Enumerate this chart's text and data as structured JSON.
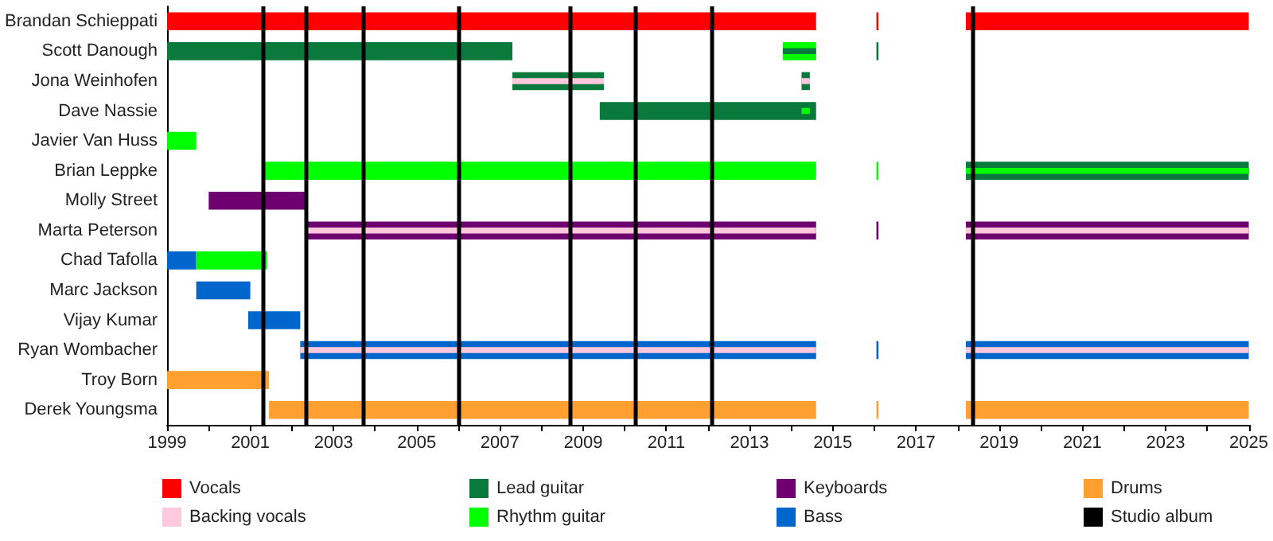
{
  "chart_data": {
    "type": "bar",
    "orientation": "horizontal",
    "categories": [
      "Brandan Schieppati",
      "Scott Danough",
      "Jona Weinhofen",
      "Dave Nassie",
      "Javier Van Huss",
      "Brian Leppke",
      "Molly Street",
      "Marta Peterson",
      "Chad Tafolla",
      "Marc Jackson",
      "Vijay Kumar",
      "Ryan Wombacher",
      "Troy Born",
      "Derek Youngsma"
    ],
    "xlim": [
      1999,
      2025
    ],
    "xticks": [
      1999,
      {
        "value": 2000,
        "label": null
      },
      2001,
      {
        "value": 2002,
        "label": null
      },
      2003,
      {
        "value": 2004,
        "label": null
      },
      2005,
      {
        "value": 2006,
        "label": null
      },
      2007,
      {
        "value": 2008,
        "label": null
      },
      2009,
      {
        "value": 2010,
        "label": null
      },
      2011,
      {
        "value": 2012,
        "label": null
      },
      2013,
      {
        "value": 2014,
        "label": null
      },
      2015,
      {
        "value": 2016,
        "label": null
      },
      2017,
      {
        "value": 2018,
        "label": null
      },
      2019,
      {
        "value": 2020,
        "label": null
      },
      2021,
      {
        "value": 2022,
        "label": null
      },
      2023,
      {
        "value": 2024,
        "label": null
      },
      2025
    ],
    "legend": "bottom",
    "series": [
      {
        "name": "Vocals",
        "color": "#ff0000",
        "base": [
          1999,
          null,
          null,
          null,
          null,
          null,
          null,
          null,
          null,
          null,
          null,
          null,
          null,
          null
        ],
        "values": [
          15.6,
          null,
          null,
          null,
          null,
          null,
          null,
          null,
          null,
          null,
          null,
          null,
          null,
          null
        ]
      },
      {
        "color": "#ff0000",
        "base": [
          2016.05,
          null,
          null,
          null,
          null,
          null,
          null,
          null,
          null,
          null,
          null,
          null,
          null,
          null
        ],
        "values": [
          0.05,
          null,
          null,
          null,
          null,
          null,
          null,
          null,
          null,
          null,
          null,
          null,
          null,
          null
        ]
      },
      {
        "color": "#ff0000",
        "base": [
          2018.2,
          null,
          null,
          null,
          null,
          null,
          null,
          null,
          null,
          null,
          null,
          null,
          null,
          null
        ],
        "values": [
          6.8,
          null,
          null,
          null,
          null,
          null,
          null,
          null,
          null,
          null,
          null,
          null,
          null,
          null
        ]
      },
      {
        "color": "#0a7a3c",
        "base": [
          null,
          1999,
          2007.3,
          2009.4,
          null,
          2018.2,
          null,
          null,
          null,
          null,
          null,
          null,
          null,
          null
        ],
        "values": [
          null,
          8.3,
          2.2,
          5.2,
          null,
          6.8,
          null,
          null,
          null,
          null,
          null,
          null,
          null,
          null
        ]
      },
      {
        "color": "#0a7a3c",
        "base": [
          null,
          null,
          2014.25,
          null,
          null,
          null,
          null,
          null,
          null,
          null,
          null,
          null,
          null,
          null
        ],
        "values": [
          null,
          null,
          0.2,
          null,
          null,
          null,
          null,
          null,
          null,
          null,
          null,
          null,
          null,
          null
        ]
      },
      {
        "color": "#6e0070",
        "base": [
          null,
          null,
          null,
          null,
          null,
          null,
          2000,
          2002.35,
          null,
          null,
          null,
          null,
          null,
          null
        ],
        "values": [
          null,
          null,
          null,
          null,
          null,
          null,
          2.35,
          12.25,
          null,
          null,
          null,
          null,
          null,
          null
        ]
      },
      {
        "color": "#6e0070",
        "base": [
          null,
          null,
          null,
          null,
          null,
          null,
          null,
          2018.2,
          null,
          null,
          null,
          null,
          null,
          null
        ],
        "values": [
          null,
          null,
          null,
          null,
          null,
          null,
          null,
          6.8,
          null,
          null,
          null,
          null,
          null,
          null
        ]
      },
      {
        "color": "#0066cc",
        "base": [
          null,
          null,
          null,
          null,
          null,
          null,
          null,
          null,
          1999,
          1999.7,
          2000.95,
          2002.2,
          null,
          null
        ],
        "values": [
          null,
          null,
          null,
          null,
          null,
          null,
          null,
          null,
          0.7,
          1.3,
          1.25,
          12.4,
          null,
          null
        ]
      },
      {
        "color": "#0066cc",
        "base": [
          null,
          null,
          null,
          null,
          null,
          null,
          null,
          null,
          null,
          null,
          null,
          2018.2,
          null,
          null
        ],
        "values": [
          null,
          null,
          null,
          null,
          null,
          null,
          null,
          null,
          null,
          null,
          null,
          6.8,
          null,
          null
        ]
      },
      {
        "name": "Backing vocals",
        "color": "#ffc8dc",
        "base": [
          null,
          null,
          2007.3,
          null,
          null,
          null,
          null,
          2002.35,
          null,
          null,
          null,
          2002.2,
          null,
          null
        ],
        "values": [
          null,
          null,
          2.2,
          null,
          null,
          null,
          null,
          12.25,
          null,
          null,
          null,
          12.4,
          null,
          null
        ]
      },
      {
        "color": "#ffc8dc",
        "base": [
          null,
          null,
          2014.25,
          null,
          null,
          null,
          null,
          2018.2,
          null,
          null,
          null,
          2018.2,
          null,
          null
        ],
        "values": [
          null,
          null,
          0.2,
          null,
          null,
          null,
          null,
          6.8,
          null,
          null,
          null,
          6.8,
          null,
          null
        ]
      },
      {
        "name": "Lead guitar",
        "color": "#0a7a3c",
        "base": [
          null,
          2016.05,
          null,
          null,
          null,
          null,
          null,
          null,
          null,
          null,
          null,
          null,
          null,
          null
        ],
        "values": [
          null,
          0.05,
          null,
          null,
          null,
          null,
          null,
          null,
          null,
          null,
          null,
          null,
          null,
          null
        ]
      },
      {
        "name": "Rhythm guitar",
        "color": "#00ff00",
        "base": [
          null,
          2013.8,
          null,
          null,
          1999,
          2001.35,
          null,
          null,
          1999.7,
          null,
          null,
          null,
          null,
          null
        ],
        "values": [
          null,
          0.8,
          null,
          null,
          0.7,
          13.25,
          null,
          null,
          1.7,
          null,
          null,
          null,
          null,
          null
        ]
      },
      {
        "color": "#00ff00",
        "base": [
          null,
          null,
          null,
          null,
          null,
          2016.05,
          null,
          null,
          null,
          null,
          null,
          null,
          null,
          null
        ],
        "values": [
          null,
          null,
          null,
          null,
          null,
          0.05,
          null,
          null,
          null,
          null,
          null,
          null,
          null,
          null
        ]
      },
      {
        "color": "#00ff00",
        "base": [
          null,
          null,
          null,
          2014.25,
          null,
          2018.2,
          null,
          null,
          null,
          null,
          null,
          null,
          null,
          null
        ],
        "values": [
          null,
          null,
          null,
          0.2,
          null,
          6.8,
          null,
          null,
          null,
          null,
          null,
          null,
          null,
          null
        ]
      },
      {
        "color": "#0a7a3c",
        "base": [
          null,
          2013.8,
          null,
          null,
          null,
          null,
          null,
          null,
          null,
          null,
          null,
          null,
          null,
          null
        ],
        "values": [
          null,
          0.8,
          null,
          null,
          null,
          null,
          null,
          null,
          null,
          null,
          null,
          null,
          null,
          null
        ]
      },
      {
        "name": "Keyboards",
        "color": "#6e0070",
        "base": [
          null,
          null,
          null,
          null,
          null,
          null,
          null,
          2016.05,
          null,
          null,
          null,
          null,
          null,
          null
        ],
        "values": [
          null,
          null,
          null,
          null,
          null,
          null,
          null,
          0.05,
          null,
          null,
          null,
          null,
          null,
          null
        ]
      },
      {
        "name": "Bass",
        "color": "#0066cc",
        "base": [
          null,
          null,
          null,
          null,
          null,
          null,
          null,
          null,
          null,
          null,
          null,
          2016.05,
          null,
          null
        ],
        "values": [
          null,
          null,
          null,
          null,
          null,
          null,
          null,
          null,
          null,
          null,
          null,
          0.05,
          null,
          null
        ]
      },
      {
        "name": "Drums",
        "color": "#ffa030",
        "base": [
          null,
          null,
          null,
          null,
          null,
          null,
          null,
          null,
          null,
          null,
          null,
          null,
          1999,
          2001.45
        ],
        "values": [
          null,
          null,
          null,
          null,
          null,
          null,
          null,
          null,
          null,
          null,
          null,
          null,
          2.45,
          13.15
        ]
      },
      {
        "color": "#ffa030",
        "base": [
          null,
          null,
          null,
          null,
          null,
          null,
          null,
          null,
          null,
          null,
          null,
          null,
          null,
          2016.05
        ],
        "values": [
          null,
          null,
          null,
          null,
          null,
          null,
          null,
          null,
          null,
          null,
          null,
          null,
          null,
          0.05
        ]
      },
      {
        "color": "#ffa030",
        "base": [
          null,
          null,
          null,
          null,
          null,
          null,
          null,
          null,
          null,
          null,
          null,
          null,
          null,
          2018.2
        ],
        "values": [
          null,
          null,
          null,
          null,
          null,
          null,
          null,
          null,
          null,
          null,
          null,
          null,
          null,
          6.8
        ]
      },
      {
        "name": "Studio album",
        "color": "#000000",
        "type": "line",
        "values": [
          null,
          null,
          null,
          null,
          null,
          null,
          null,
          null,
          null,
          null,
          null,
          null,
          null,
          null
        ]
      }
    ],
    "ref_lines": [
      {
        "axis": "x",
        "value": 2001.3,
        "color": "#000000"
      },
      {
        "axis": "x",
        "value": 2002.35,
        "color": "#000000"
      },
      {
        "axis": "x",
        "value": 2003.7,
        "color": "#000000"
      },
      {
        "axis": "x",
        "value": 2006.0,
        "color": "#000000"
      },
      {
        "axis": "x",
        "value": 2008.7,
        "color": "#000000"
      },
      {
        "axis": "x",
        "value": 2010.25,
        "color": "#000000"
      },
      {
        "axis": "x",
        "value": 2012.1,
        "color": "#000000"
      },
      {
        "axis": "x",
        "value": 2018.35,
        "color": "#000000"
      }
    ]
  }
}
